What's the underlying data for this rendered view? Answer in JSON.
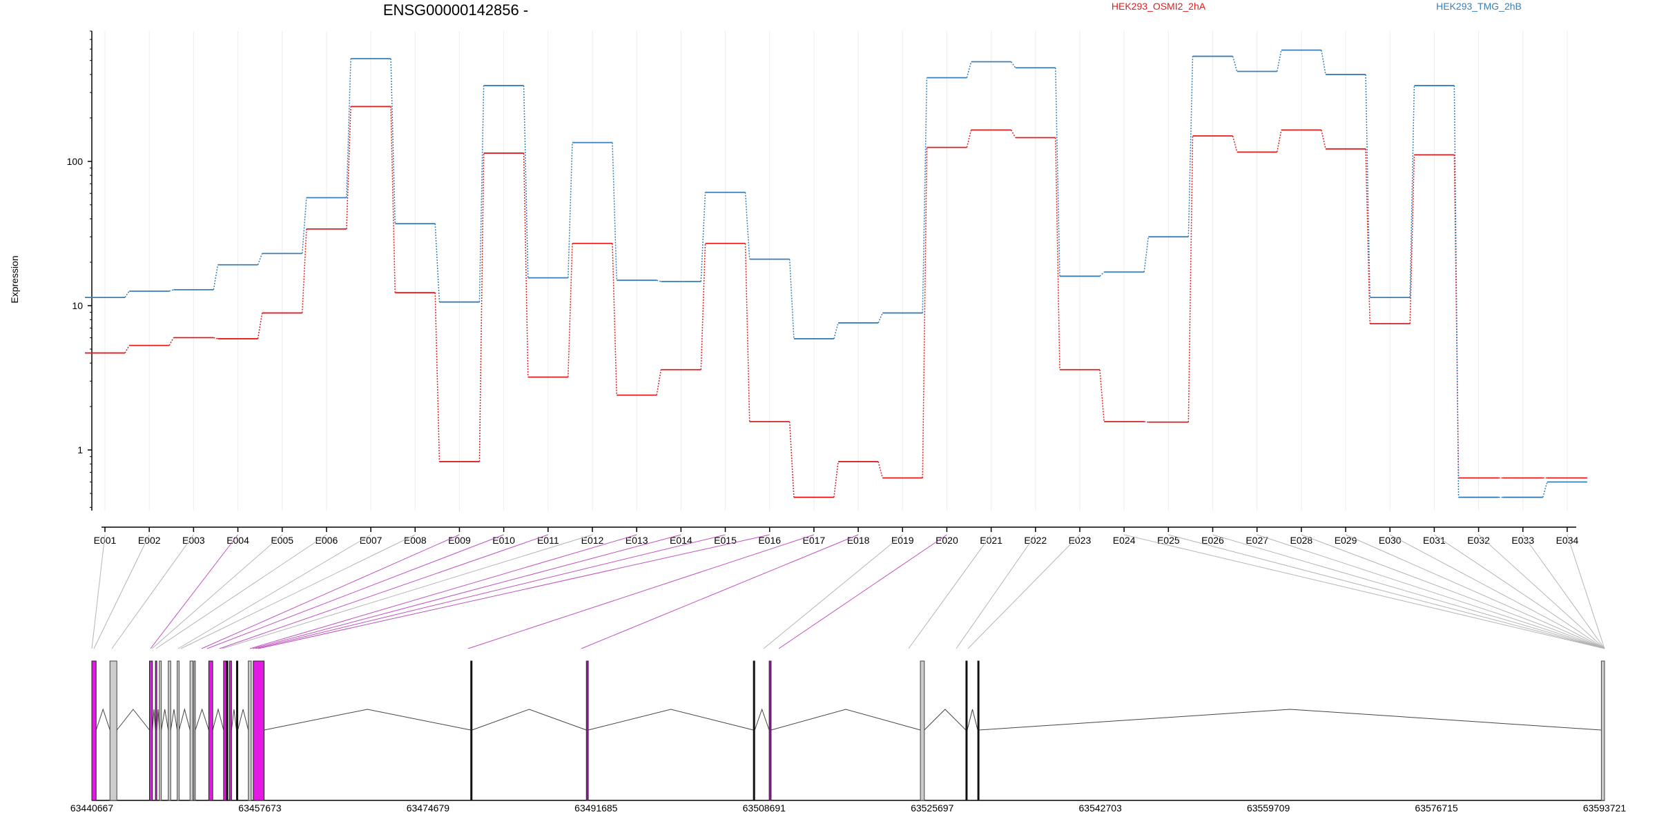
{
  "chart_data": {
    "type": "line",
    "title": "ENSG00000142856 -",
    "ylabel": "Expression",
    "yscale": "log",
    "ylim": [
      0.38,
      800
    ],
    "yticks": [
      1,
      10,
      100
    ],
    "ytick_labels": [
      "1",
      "10",
      "100"
    ],
    "legend_placement": "top",
    "categories": [
      "E001",
      "E002",
      "E003",
      "E004",
      "E005",
      "E006",
      "E007",
      "E008",
      "E009",
      "E010",
      "E011",
      "E012",
      "E013",
      "E014",
      "E015",
      "E016",
      "E017",
      "E018",
      "E019",
      "E020",
      "E021",
      "E022",
      "E023",
      "E024",
      "E025",
      "E026",
      "E027",
      "E028",
      "E029",
      "E030",
      "E031",
      "E032",
      "E033",
      "E034"
    ],
    "series": [
      {
        "name": "HEK293_OSMI2_2hA",
        "color": "#e41a1c",
        "values": [
          4.7,
          5.3,
          6.0,
          5.9,
          8.9,
          34,
          240,
          12.3,
          0.83,
          114,
          3.2,
          27,
          2.4,
          3.6,
          27,
          1.57,
          0.47,
          0.83,
          0.64,
          125,
          165,
          146,
          3.6,
          1.57,
          1.56,
          150,
          116,
          165,
          122,
          7.5,
          111,
          0.64,
          0.64,
          0.64
        ]
      },
      {
        "name": "HEK293_TMG_2hB",
        "color": "#377eb8",
        "values": [
          11.4,
          12.6,
          12.9,
          19.2,
          23,
          56,
          515,
          37,
          10.6,
          335,
          15.6,
          135,
          15.0,
          14.7,
          61,
          21,
          5.9,
          7.6,
          8.9,
          380,
          490,
          445,
          16,
          17.1,
          30,
          535,
          420,
          590,
          400,
          11.4,
          335,
          0.47,
          0.47,
          0.6
        ]
      }
    ],
    "gene_model": {
      "coordinate_ticks": [
        "63440667",
        "63457673",
        "63474679",
        "63491685",
        "63508691",
        "63525697",
        "63542703",
        "63559709",
        "63576715",
        "63593721"
      ],
      "coordinate_start": 63440667,
      "coordinate_end": 63593721,
      "highlight_color": "#e31ae3",
      "plain_exon_color": "#cccccc",
      "connector_gray": "#b4b4b4",
      "connector_purple": "#c050c0",
      "exons": [
        {
          "start": 63440667,
          "end": 63441100,
          "style": "pink"
        },
        {
          "start": 63442500,
          "end": 63443200,
          "style": "gray"
        },
        {
          "start": 63446500,
          "end": 63446800,
          "style": "pink"
        },
        {
          "start": 63447100,
          "end": 63447200,
          "style": "pink"
        },
        {
          "start": 63447500,
          "end": 63447700,
          "style": "gray"
        },
        {
          "start": 63448400,
          "end": 63448650,
          "style": "gray"
        },
        {
          "start": 63449300,
          "end": 63449500,
          "style": "gray"
        },
        {
          "start": 63450600,
          "end": 63450900,
          "style": "gray"
        },
        {
          "start": 63451000,
          "end": 63451100,
          "style": "gray"
        },
        {
          "start": 63452500,
          "end": 63452900,
          "style": "pink"
        },
        {
          "start": 63454000,
          "end": 63454250,
          "style": "pink"
        },
        {
          "start": 63454300,
          "end": 63454400,
          "style": "line"
        },
        {
          "start": 63454600,
          "end": 63454800,
          "style": "pink"
        },
        {
          "start": 63455300,
          "end": 63455400,
          "style": "line"
        },
        {
          "start": 63456500,
          "end": 63456800,
          "style": "gray"
        },
        {
          "start": 63457000,
          "end": 63458100,
          "style": "pink"
        },
        {
          "start": 63479000,
          "end": 63479100,
          "style": "line"
        },
        {
          "start": 63490700,
          "end": 63490900,
          "style": "purple"
        },
        {
          "start": 63507600,
          "end": 63507700,
          "style": "line"
        },
        {
          "start": 63509200,
          "end": 63509400,
          "style": "purple"
        },
        {
          "start": 63524500,
          "end": 63524900,
          "style": "gray"
        },
        {
          "start": 63529100,
          "end": 63529200,
          "style": "line"
        },
        {
          "start": 63530300,
          "end": 63530400,
          "style": "line"
        },
        {
          "start": 63593400,
          "end": 63593721,
          "style": "gray"
        }
      ]
    }
  }
}
